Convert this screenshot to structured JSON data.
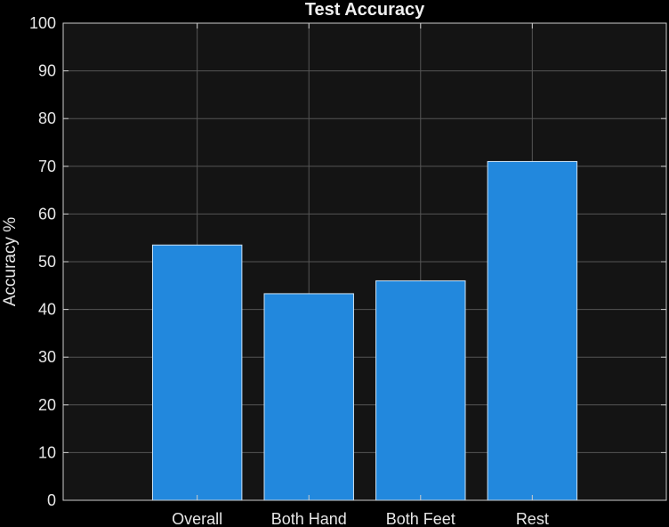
{
  "chart_data": {
    "type": "bar",
    "title": "Test Accuracy",
    "xlabel": "",
    "ylabel": "Accuracy %",
    "categories": [
      "Overall",
      "Both Hand",
      "Both Feet",
      "Rest"
    ],
    "values": [
      53.5,
      43.3,
      46.0,
      71.0
    ],
    "ylim": [
      0,
      100
    ],
    "yticks": [
      0,
      10,
      20,
      30,
      40,
      50,
      60,
      70,
      80,
      90,
      100
    ],
    "ytick_labels": [
      "0",
      "10",
      "20",
      "30",
      "40",
      "50",
      "60",
      "70",
      "80",
      "90",
      "100"
    ],
    "grid": true,
    "colors": {
      "background": "#000000",
      "plot_area": "#141414",
      "bar": "#2288dd",
      "bar_edge": "#cfe3f5",
      "grid": "#555555",
      "axis": "#cccccc"
    }
  }
}
